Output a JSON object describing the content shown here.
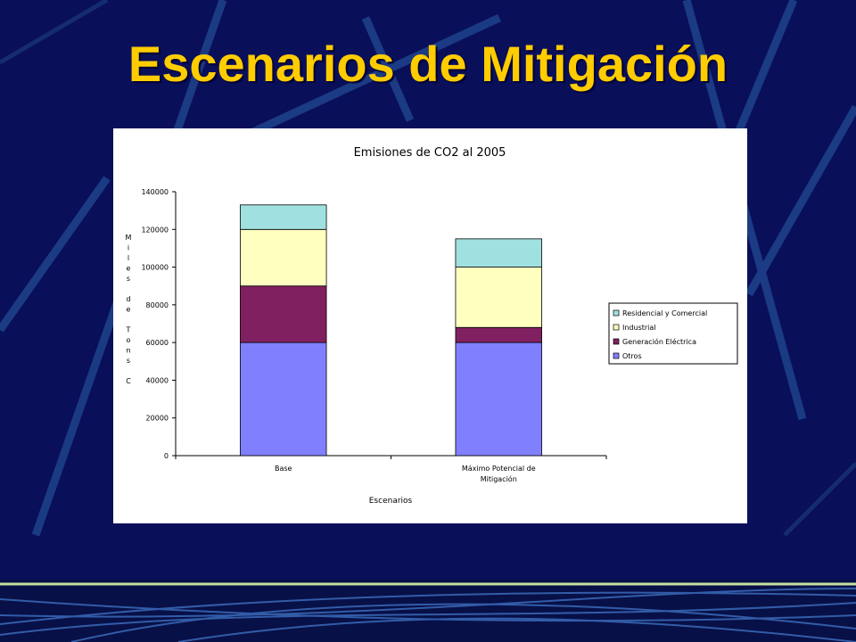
{
  "slide": {
    "title": "Escenarios de Mitigación"
  },
  "chart_data": {
    "type": "bar",
    "stacked": true,
    "title": "Emisiones de CO2 al 2005",
    "xlabel": "Escenarios",
    "ylabel": "Miles de Tons C",
    "ylim": [
      0,
      140000
    ],
    "yticks": [
      0,
      20000,
      40000,
      60000,
      80000,
      100000,
      120000,
      140000
    ],
    "grid": false,
    "legend_position": "right",
    "categories": [
      [
        "Base"
      ],
      [
        "Máximo Potencial de",
        "Mitigación"
      ]
    ],
    "series": [
      {
        "name": "Otros",
        "color": "#8080ff",
        "values": [
          60000,
          60000
        ]
      },
      {
        "name": "Generación Eléctrica",
        "color": "#802060",
        "values": [
          30000,
          8000
        ]
      },
      {
        "name": "Industrial",
        "color": "#ffffc0",
        "values": [
          30000,
          32000
        ]
      },
      {
        "name": "Residencial y Comercial",
        "color": "#a0e0e0",
        "values": [
          13000,
          15000
        ]
      }
    ]
  }
}
